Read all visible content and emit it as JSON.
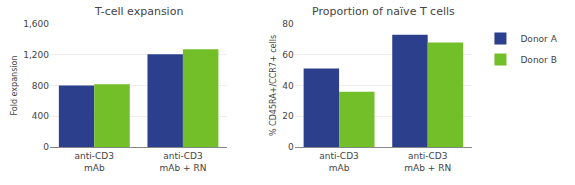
{
  "chart_data": [
    {
      "type": "bar",
      "title": "T-cell expansion",
      "y_label": "Fold expansion",
      "categories": [
        "anti-CD3\nmAb",
        "anti-CD3\nmAb + RN"
      ],
      "series": [
        {
          "name": "Donor A",
          "color": "#2b3f8c",
          "values": [
            800,
            1205
          ]
        },
        {
          "name": "Donor B",
          "color": "#72bf2a",
          "values": [
            815,
            1270
          ]
        }
      ],
      "ylim": [
        0,
        1600
      ],
      "yticks": [
        0,
        400,
        800,
        {
          "value": 1200,
          "label": "1,200"
        },
        {
          "value": 1600,
          "label": "1,600"
        }
      ],
      "grid": true
    },
    {
      "type": "bar",
      "title": "Proportion of naïve T cells",
      "y_label": "% CD45RA+/CCR7+ cells",
      "categories": [
        "anti-CD3\nmAb",
        "anti-CD3\nmAb + RN"
      ],
      "series": [
        {
          "name": "Donor A",
          "color": "#2b3f8c",
          "values": [
            51,
            73
          ]
        },
        {
          "name": "Donor B",
          "color": "#72bf2a",
          "values": [
            36,
            68
          ]
        }
      ],
      "ylim": [
        0,
        80
      ],
      "yticks": [
        0,
        20,
        40,
        60,
        80
      ],
      "grid": true,
      "legend": "right"
    }
  ]
}
